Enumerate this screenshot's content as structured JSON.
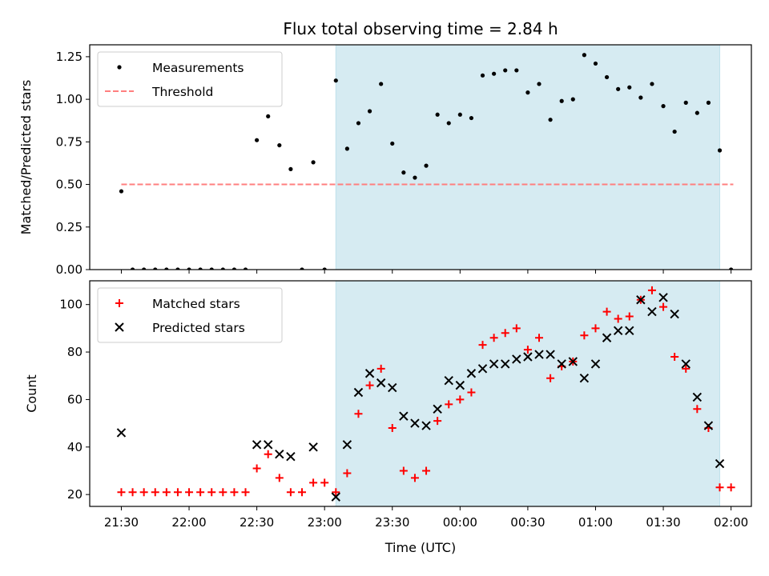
{
  "figure": {
    "title": "Flux total observing time = 2.84 h",
    "xlabel": "Time (UTC)",
    "x_ticks": [
      "21:30",
      "22:00",
      "22:30",
      "23:00",
      "23:30",
      "00:00",
      "00:30",
      "01:00",
      "01:30",
      "02:00"
    ],
    "x_tick_minutes": [
      1290,
      1320,
      1350,
      1380,
      1410,
      1440,
      1470,
      1500,
      1530,
      1560
    ],
    "xlim_minutes": [
      1276,
      1569
    ],
    "shaded_span_minutes": [
      1385,
      1555
    ],
    "colors": {
      "shade": "#add8e6",
      "threshold": "#ff7f7f",
      "matched": "#ff0000",
      "predicted": "#000000",
      "measurements": "#000000"
    }
  },
  "chart_data": [
    {
      "type": "scatter",
      "ylabel": "Matched/Predicted stars",
      "ylim": [
        0,
        1.32
      ],
      "yticks": [
        "0.00",
        "0.25",
        "0.50",
        "0.75",
        "1.00",
        "1.25"
      ],
      "ytick_values": [
        0,
        0.25,
        0.5,
        0.75,
        1.0,
        1.25
      ],
      "legend": {
        "position": "upper left",
        "entries": [
          "Measurements",
          "Threshold"
        ]
      },
      "threshold": {
        "y": 0.5,
        "x_range_minutes": [
          1290,
          1561
        ]
      },
      "series": [
        {
          "name": "Measurements",
          "x": [
            1290,
            1295,
            1300,
            1305,
            1310,
            1315,
            1320,
            1325,
            1330,
            1335,
            1340,
            1345,
            1350,
            1355,
            1360,
            1365,
            1370,
            1375,
            1380,
            1385,
            1390,
            1395,
            1400,
            1405,
            1410,
            1415,
            1420,
            1425,
            1430,
            1435,
            1440,
            1445,
            1450,
            1455,
            1460,
            1465,
            1470,
            1475,
            1480,
            1485,
            1490,
            1495,
            1500,
            1505,
            1510,
            1515,
            1520,
            1525,
            1530,
            1535,
            1540,
            1545,
            1550,
            1555,
            1560
          ],
          "values": [
            0.46,
            0.0,
            0.0,
            0.0,
            0.0,
            0.0,
            0.0,
            0.0,
            0.0,
            0.0,
            0.0,
            0.0,
            0.76,
            0.9,
            0.73,
            0.59,
            0.0,
            0.63,
            0.0,
            1.11,
            0.71,
            0.86,
            0.93,
            1.09,
            0.74,
            0.57,
            0.54,
            0.61,
            0.91,
            0.86,
            0.91,
            0.89,
            1.14,
            1.15,
            1.17,
            1.17,
            1.04,
            1.09,
            0.88,
            0.99,
            1.0,
            1.26,
            1.21,
            1.13,
            1.06,
            1.07,
            1.01,
            1.09,
            0.96,
            0.81,
            0.98,
            0.92,
            0.98,
            0.7,
            0.0
          ]
        }
      ]
    },
    {
      "type": "scatter",
      "ylabel": "Count",
      "ylim": [
        15,
        110
      ],
      "yticks": [
        "20",
        "40",
        "60",
        "80",
        "100"
      ],
      "ytick_values": [
        20,
        40,
        60,
        80,
        100
      ],
      "legend": {
        "position": "upper left",
        "entries": [
          "Matched stars",
          "Predicted stars"
        ]
      },
      "series": [
        {
          "name": "Matched stars",
          "x": [
            1290,
            1295,
            1300,
            1305,
            1310,
            1315,
            1320,
            1325,
            1330,
            1335,
            1340,
            1345,
            1350,
            1355,
            1360,
            1365,
            1370,
            1375,
            1380,
            1385,
            1390,
            1395,
            1400,
            1405,
            1410,
            1415,
            1420,
            1425,
            1430,
            1435,
            1440,
            1445,
            1450,
            1455,
            1460,
            1465,
            1470,
            1475,
            1480,
            1485,
            1490,
            1495,
            1500,
            1505,
            1510,
            1515,
            1520,
            1525,
            1530,
            1535,
            1540,
            1545,
            1550,
            1555,
            1560
          ],
          "values": [
            21,
            21,
            21,
            21,
            21,
            21,
            21,
            21,
            21,
            21,
            21,
            21,
            31,
            37,
            27,
            21,
            21,
            25,
            25,
            21,
            29,
            54,
            66,
            73,
            48,
            30,
            27,
            30,
            51,
            58,
            60,
            63,
            83,
            86,
            88,
            90,
            81,
            86,
            69,
            74,
            76,
            87,
            90,
            97,
            94,
            95,
            102,
            106,
            99,
            78,
            73,
            56,
            48,
            23,
            23
          ]
        },
        {
          "name": "Predicted stars",
          "x": [
            1290,
            1350,
            1355,
            1360,
            1365,
            1375,
            1385,
            1390,
            1395,
            1400,
            1405,
            1410,
            1415,
            1420,
            1425,
            1430,
            1435,
            1440,
            1445,
            1450,
            1455,
            1460,
            1465,
            1470,
            1475,
            1480,
            1485,
            1490,
            1495,
            1500,
            1505,
            1510,
            1515,
            1520,
            1525,
            1530,
            1535,
            1540,
            1545,
            1550,
            1555
          ],
          "values": [
            46,
            41,
            41,
            37,
            36,
            40,
            19,
            41,
            63,
            71,
            67,
            65,
            53,
            50,
            49,
            56,
            68,
            66,
            71,
            73,
            75,
            75,
            77,
            78,
            79,
            79,
            75,
            76,
            69,
            75,
            86,
            89,
            89,
            102,
            97,
            103,
            96,
            75,
            61,
            49,
            33
          ]
        }
      ]
    }
  ]
}
